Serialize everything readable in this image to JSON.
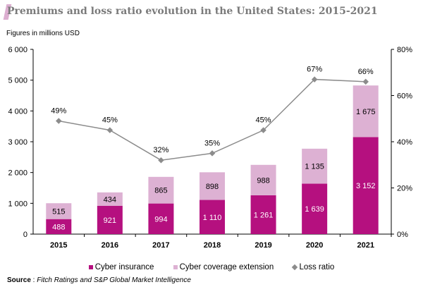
{
  "title": "Premiums and loss ratio evolution in the United States: 2015-2021",
  "unit_note": "Figures in millions USD",
  "source_label": "Source",
  "source_text": "Fitch Ratings and S&P Global Market Intelligence",
  "colors": {
    "cyber": "#b5107f",
    "extension": "#ddb1d3",
    "loss": "#8c8c8c"
  },
  "chart_data": {
    "type": "bar",
    "stacked": true,
    "categories": [
      "2015",
      "2016",
      "2017",
      "2018",
      "2019",
      "2020",
      "2021"
    ],
    "series": [
      {
        "name": "Cyber insurance",
        "values": [
          488,
          921,
          994,
          1110,
          1261,
          1639,
          3152
        ],
        "labels": [
          "488",
          "921",
          "994",
          "1 110",
          "1 261",
          "1 639",
          "3 152"
        ]
      },
      {
        "name": "Cyber coverage extension",
        "values": [
          515,
          434,
          865,
          898,
          988,
          1135,
          1675
        ],
        "labels": [
          "515",
          "434",
          "865",
          "898",
          "988",
          "1 135",
          "1 675"
        ]
      },
      {
        "name": "Loss ratio",
        "type": "line",
        "axis": "right",
        "values": [
          49,
          45,
          32,
          35,
          45,
          67,
          66
        ],
        "labels": [
          "49%",
          "45%",
          "32%",
          "35%",
          "45%",
          "67%",
          "66%"
        ]
      }
    ],
    "y_left": {
      "range": [
        0,
        6000
      ],
      "ticks": [
        "0",
        "1 000",
        "2 000",
        "3 000",
        "4 000",
        "5 000",
        "6 000"
      ]
    },
    "y_right": {
      "range": [
        0,
        80
      ],
      "ticks": [
        "0%",
        "20%",
        "40%",
        "60%",
        "80%"
      ]
    },
    "grid": false,
    "legend": "bottom"
  }
}
